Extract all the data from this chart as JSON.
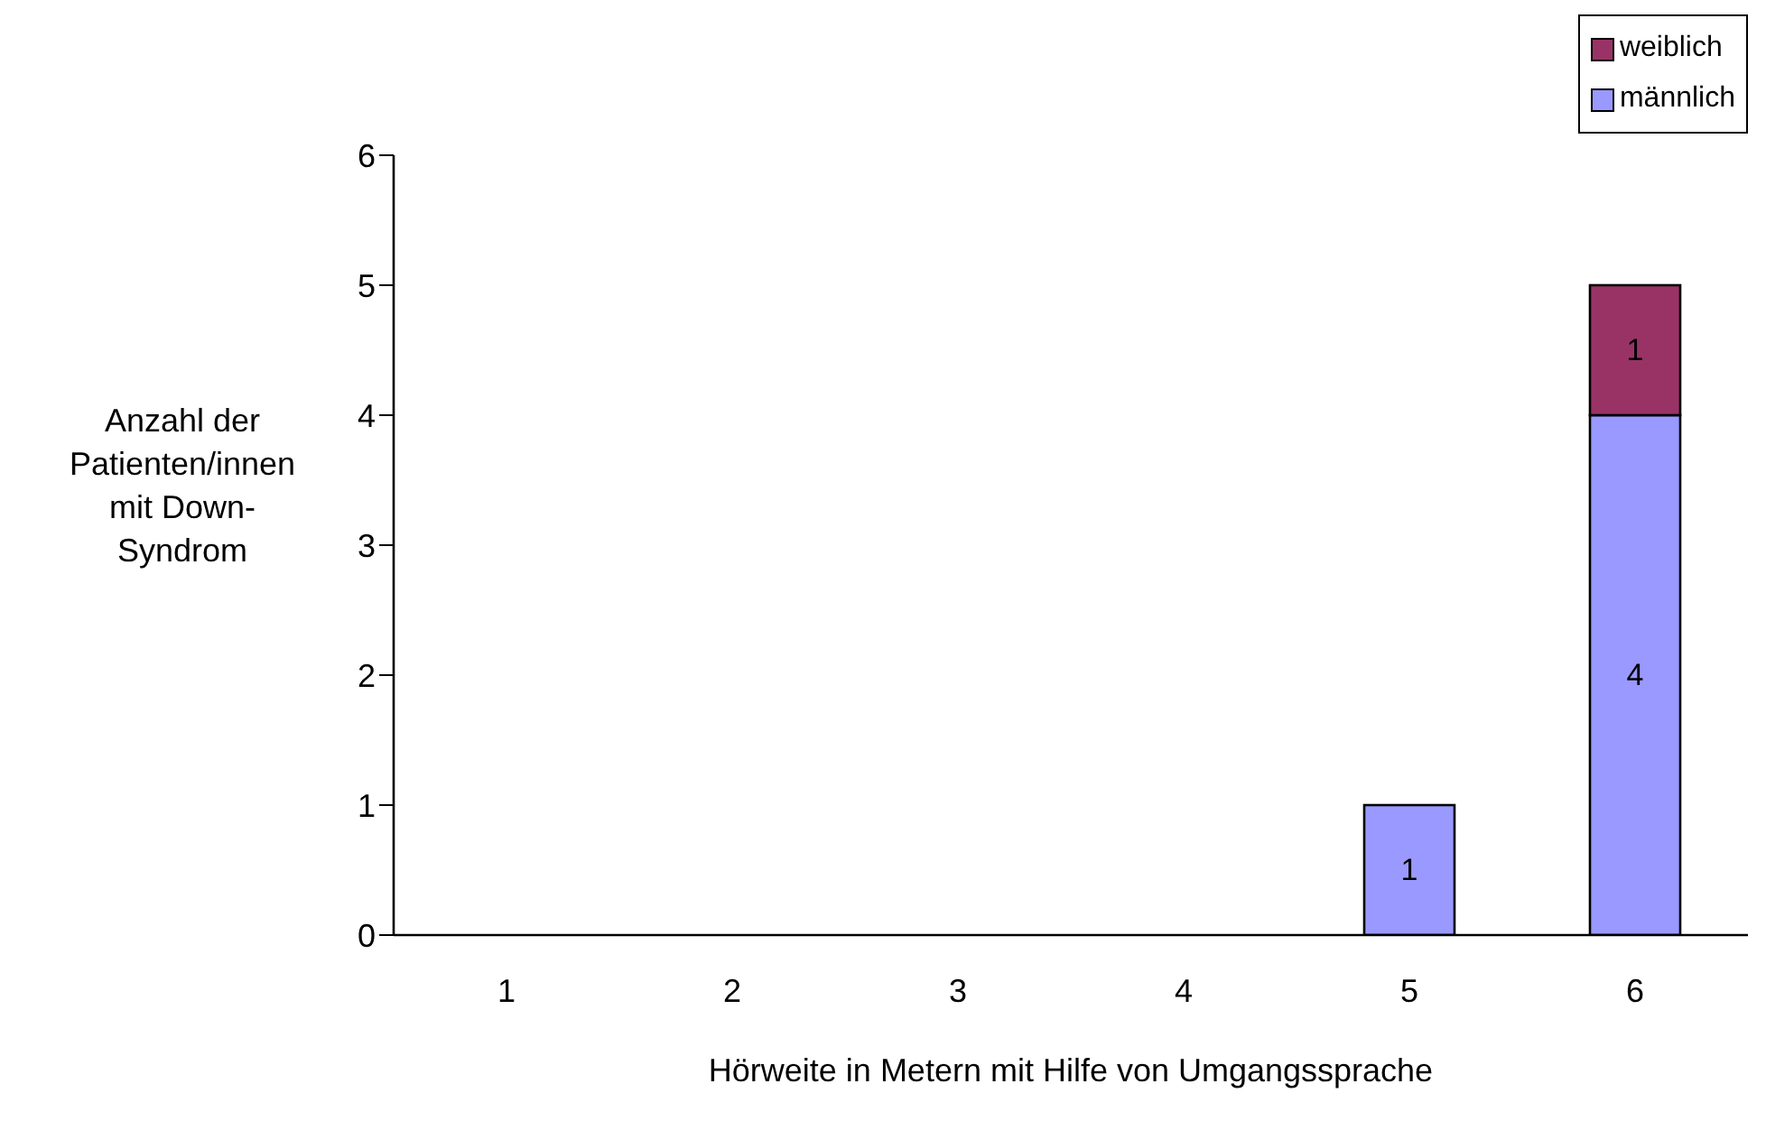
{
  "chart_data": {
    "type": "bar",
    "stacked": true,
    "xlabel": "Hörweite in Metern mit Hilfe von Umgangssprache",
    "ylabel": "Anzahl der Patienten/innen mit Down-Syndrom",
    "categories": [
      "1",
      "2",
      "3",
      "4",
      "5",
      "6"
    ],
    "series": [
      {
        "name": "männlich",
        "color": "#9999ff",
        "values": [
          0,
          0,
          0,
          0,
          1,
          4
        ],
        "value_labels": [
          null,
          null,
          null,
          null,
          "1",
          "4"
        ]
      },
      {
        "name": "weiblich",
        "color": "#993366",
        "values": [
          0,
          0,
          0,
          0,
          0,
          1
        ],
        "value_labels": [
          null,
          null,
          null,
          null,
          null,
          "1"
        ]
      }
    ],
    "ylim": [
      0,
      6
    ],
    "yticks": [
      0,
      1,
      2,
      3,
      4,
      5,
      6
    ],
    "grid": false,
    "legend": "top right"
  }
}
